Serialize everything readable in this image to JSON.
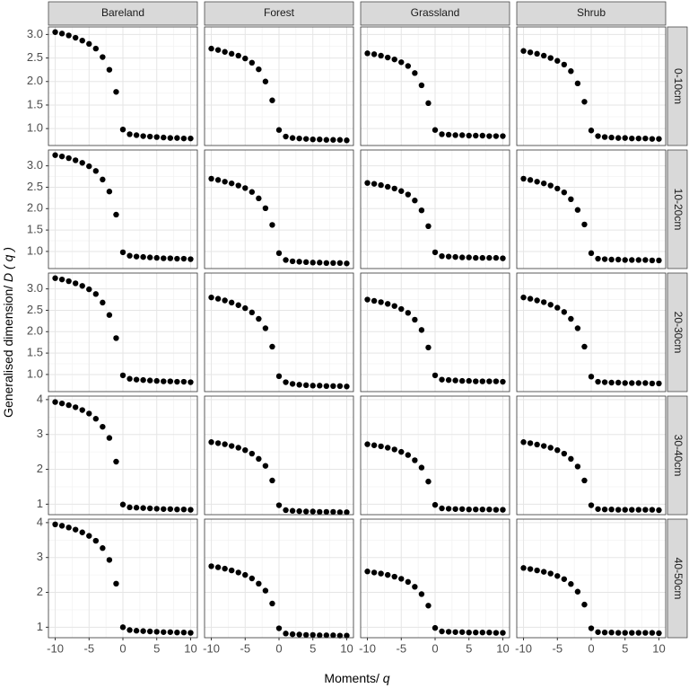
{
  "chart_data": {
    "type": "scatter",
    "x_label": "Moments/",
    "x_label_symbol": "q",
    "y_label": "Generalised dimension/",
    "y_label_symbol": "D ( q )",
    "columns": [
      "Bareland",
      "Forest",
      "Grassland",
      "Shrub"
    ],
    "x": [
      -10,
      -9,
      -8,
      -7,
      -6,
      -5,
      -4,
      -3,
      -2,
      -1,
      0,
      1,
      2,
      3,
      4,
      5,
      6,
      7,
      8,
      9,
      10
    ],
    "xlim": [
      -11,
      11
    ],
    "xticks": [
      -10,
      -5,
      0,
      5,
      10
    ],
    "color": "#000000",
    "grid": true,
    "rows": [
      {
        "label": "0-10cm",
        "ylim": [
          0.64,
          3.16
        ],
        "yticks": [
          {
            "value": 1,
            "label": "1.0"
          },
          1.5,
          {
            "value": 2,
            "label": "2.0"
          },
          2.5,
          {
            "value": 3,
            "label": "3.0"
          }
        ],
        "panels": [
          [
            3.05,
            3.02,
            2.98,
            2.93,
            2.87,
            2.8,
            2.7,
            2.52,
            2.25,
            1.78,
            0.98,
            0.88,
            0.86,
            0.84,
            0.83,
            0.82,
            0.81,
            0.8,
            0.8,
            0.79,
            0.79
          ],
          [
            2.7,
            2.67,
            2.63,
            2.59,
            2.55,
            2.49,
            2.4,
            2.26,
            2.0,
            1.6,
            0.97,
            0.83,
            0.8,
            0.79,
            0.78,
            0.77,
            0.77,
            0.76,
            0.76,
            0.76,
            0.75
          ],
          [
            2.6,
            2.58,
            2.55,
            2.51,
            2.47,
            2.41,
            2.33,
            2.18,
            1.92,
            1.54,
            0.97,
            0.88,
            0.87,
            0.86,
            0.86,
            0.85,
            0.85,
            0.85,
            0.84,
            0.84,
            0.84
          ],
          [
            2.65,
            2.62,
            2.59,
            2.55,
            2.5,
            2.44,
            2.36,
            2.22,
            1.96,
            1.57,
            0.96,
            0.84,
            0.82,
            0.81,
            0.8,
            0.8,
            0.79,
            0.79,
            0.79,
            0.78,
            0.78
          ]
        ]
      },
      {
        "label": "10-20cm",
        "ylim": [
          0.6,
          3.37
        ],
        "yticks": [
          {
            "value": 1,
            "label": "1.0"
          },
          1.5,
          {
            "value": 2,
            "label": "2.0"
          },
          2.5,
          {
            "value": 3,
            "label": "3.0"
          }
        ],
        "panels": [
          [
            3.25,
            3.22,
            3.18,
            3.13,
            3.07,
            2.99,
            2.88,
            2.68,
            2.4,
            1.86,
            0.98,
            0.9,
            0.88,
            0.87,
            0.86,
            0.85,
            0.84,
            0.84,
            0.83,
            0.83,
            0.82
          ],
          [
            2.7,
            2.67,
            2.63,
            2.59,
            2.54,
            2.48,
            2.39,
            2.24,
            2.01,
            1.62,
            0.96,
            0.8,
            0.77,
            0.76,
            0.75,
            0.74,
            0.74,
            0.73,
            0.73,
            0.73,
            0.72
          ],
          [
            2.6,
            2.58,
            2.55,
            2.51,
            2.47,
            2.41,
            2.33,
            2.19,
            1.96,
            1.59,
            0.98,
            0.89,
            0.88,
            0.87,
            0.86,
            0.86,
            0.85,
            0.85,
            0.85,
            0.85,
            0.84
          ],
          [
            2.7,
            2.67,
            2.63,
            2.59,
            2.54,
            2.47,
            2.38,
            2.22,
            1.97,
            1.63,
            0.96,
            0.83,
            0.82,
            0.81,
            0.81,
            0.8,
            0.8,
            0.8,
            0.8,
            0.79,
            0.79
          ]
        ]
      },
      {
        "label": "20-30cm",
        "ylim": [
          0.6,
          3.37
        ],
        "yticks": [
          {
            "value": 1,
            "label": "1.0"
          },
          1.5,
          {
            "value": 2,
            "label": "2.0"
          },
          2.5,
          {
            "value": 3,
            "label": "3.0"
          }
        ],
        "panels": [
          [
            3.25,
            3.22,
            3.18,
            3.13,
            3.07,
            2.99,
            2.88,
            2.68,
            2.39,
            1.85,
            0.98,
            0.9,
            0.88,
            0.87,
            0.86,
            0.85,
            0.84,
            0.84,
            0.83,
            0.83,
            0.82
          ],
          [
            2.8,
            2.77,
            2.73,
            2.68,
            2.62,
            2.55,
            2.45,
            2.3,
            2.08,
            1.65,
            0.96,
            0.82,
            0.78,
            0.76,
            0.75,
            0.74,
            0.74,
            0.73,
            0.73,
            0.73,
            0.72
          ],
          [
            2.75,
            2.72,
            2.69,
            2.65,
            2.6,
            2.53,
            2.44,
            2.28,
            2.04,
            1.63,
            0.98,
            0.88,
            0.87,
            0.86,
            0.85,
            0.85,
            0.84,
            0.84,
            0.84,
            0.84,
            0.83
          ],
          [
            2.8,
            2.77,
            2.73,
            2.69,
            2.63,
            2.56,
            2.46,
            2.3,
            2.08,
            1.65,
            0.95,
            0.83,
            0.82,
            0.81,
            0.81,
            0.8,
            0.8,
            0.8,
            0.8,
            0.79,
            0.79
          ]
        ]
      },
      {
        "label": "30-40cm",
        "ylim": [
          0.7,
          4.1
        ],
        "yticks": [
          1,
          2,
          3,
          4
        ],
        "panels": [
          [
            3.93,
            3.89,
            3.84,
            3.78,
            3.7,
            3.6,
            3.45,
            3.22,
            2.9,
            2.22,
            0.99,
            0.91,
            0.9,
            0.89,
            0.88,
            0.87,
            0.86,
            0.86,
            0.85,
            0.85,
            0.84
          ],
          [
            2.78,
            2.75,
            2.72,
            2.67,
            2.62,
            2.55,
            2.45,
            2.3,
            2.1,
            1.68,
            0.97,
            0.83,
            0.81,
            0.8,
            0.79,
            0.79,
            0.78,
            0.78,
            0.78,
            0.77,
            0.77
          ],
          [
            2.72,
            2.69,
            2.66,
            2.62,
            2.57,
            2.5,
            2.41,
            2.26,
            2.05,
            1.65,
            0.98,
            0.88,
            0.87,
            0.86,
            0.86,
            0.85,
            0.85,
            0.85,
            0.85,
            0.84,
            0.84
          ],
          [
            2.78,
            2.75,
            2.71,
            2.67,
            2.62,
            2.55,
            2.45,
            2.3,
            2.08,
            1.68,
            0.97,
            0.86,
            0.85,
            0.85,
            0.84,
            0.84,
            0.84,
            0.84,
            0.84,
            0.84,
            0.83
          ]
        ]
      },
      {
        "label": "40-50cm",
        "ylim": [
          0.7,
          4.1
        ],
        "yticks": [
          1,
          2,
          3,
          4
        ],
        "panels": [
          [
            3.95,
            3.91,
            3.86,
            3.8,
            3.72,
            3.62,
            3.48,
            3.27,
            2.93,
            2.25,
            1.0,
            0.92,
            0.9,
            0.89,
            0.88,
            0.87,
            0.86,
            0.86,
            0.85,
            0.85,
            0.84
          ],
          [
            2.75,
            2.72,
            2.68,
            2.63,
            2.57,
            2.5,
            2.4,
            2.25,
            2.05,
            1.68,
            0.97,
            0.82,
            0.8,
            0.79,
            0.78,
            0.78,
            0.77,
            0.77,
            0.77,
            0.76,
            0.76
          ],
          [
            2.6,
            2.57,
            2.54,
            2.5,
            2.45,
            2.39,
            2.3,
            2.16,
            1.95,
            1.62,
            0.98,
            0.88,
            0.87,
            0.86,
            0.86,
            0.85,
            0.85,
            0.85,
            0.85,
            0.84,
            0.84
          ],
          [
            2.7,
            2.67,
            2.63,
            2.59,
            2.54,
            2.47,
            2.38,
            2.24,
            2.02,
            1.65,
            0.97,
            0.86,
            0.85,
            0.85,
            0.84,
            0.84,
            0.84,
            0.84,
            0.84,
            0.84,
            0.83
          ]
        ]
      }
    ]
  }
}
